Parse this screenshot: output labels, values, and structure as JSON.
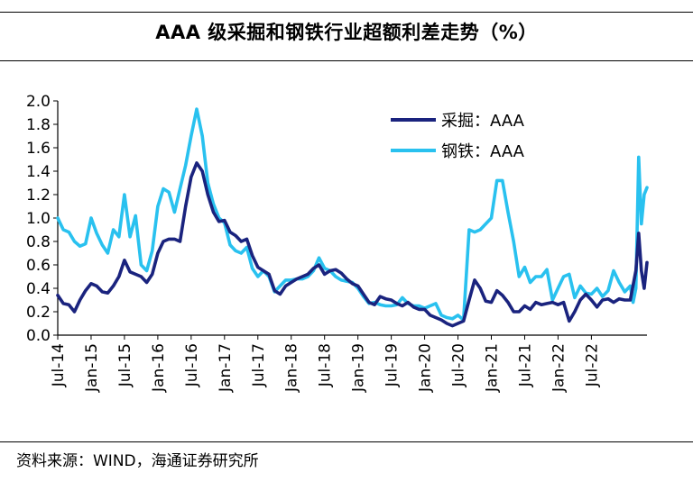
{
  "title": "AAA 级采掘和钢铁行业超额利差走势（%）",
  "source": "资料来源：WIND，海通证券研究所",
  "chart_data": {
    "type": "line",
    "title": "AAA 级采掘和钢铁行业超额利差走势（%）",
    "xlabel": "",
    "ylabel": "",
    "ylim": [
      0.0,
      2.0
    ],
    "yticks": [
      "0.0",
      "0.2",
      "0.4",
      "0.6",
      "0.8",
      "1.0",
      "1.2",
      "1.4",
      "1.6",
      "1.8",
      "2.0"
    ],
    "xticks": [
      "Jul-14",
      "Jan-15",
      "Jul-15",
      "Jan-16",
      "Jul-16",
      "Jan-17",
      "Jul-17",
      "Jan-18",
      "Jul-18",
      "Jan-19",
      "Jul-19",
      "Jan-20",
      "Jul-20",
      "Jan-21",
      "Jul-21",
      "Jan-22",
      "Jul-22"
    ],
    "xlim": [
      0,
      106
    ],
    "legend_position": "top-right",
    "series": [
      {
        "name": "采掘：AAA",
        "color": "#1a237e",
        "x": [
          0,
          1,
          2,
          3,
          4,
          5,
          6,
          7,
          8,
          9,
          10,
          11,
          12,
          13,
          14,
          15,
          16,
          17,
          18,
          19,
          20,
          21,
          22,
          23,
          24,
          25,
          26,
          27,
          28,
          29,
          30,
          31,
          32,
          33,
          34,
          35,
          36,
          37,
          38,
          39,
          40,
          41,
          42,
          43,
          44,
          45,
          46,
          47,
          48,
          49,
          50,
          51,
          52,
          53,
          54,
          55,
          56,
          57,
          58,
          59,
          60,
          61,
          62,
          63,
          64,
          65,
          66,
          67,
          68,
          69,
          70,
          71,
          72,
          73,
          74,
          75,
          76,
          77,
          78,
          79,
          80,
          81,
          82,
          83,
          84,
          85,
          86,
          87,
          88,
          89,
          90,
          91,
          92,
          93,
          94,
          95,
          96,
          97,
          98,
          99,
          100,
          101,
          102,
          103,
          104,
          104.5,
          105,
          105.5,
          106
        ],
        "values": [
          0.34,
          0.27,
          0.26,
          0.2,
          0.3,
          0.38,
          0.44,
          0.42,
          0.37,
          0.36,
          0.42,
          0.5,
          0.64,
          0.54,
          0.52,
          0.5,
          0.45,
          0.52,
          0.7,
          0.8,
          0.82,
          0.82,
          0.8,
          1.1,
          1.35,
          1.47,
          1.4,
          1.2,
          1.05,
          0.97,
          0.98,
          0.88,
          0.85,
          0.8,
          0.82,
          0.68,
          0.58,
          0.55,
          0.52,
          0.38,
          0.35,
          0.42,
          0.45,
          0.48,
          0.5,
          0.52,
          0.57,
          0.6,
          0.52,
          0.55,
          0.56,
          0.53,
          0.48,
          0.44,
          0.42,
          0.35,
          0.28,
          0.26,
          0.33,
          0.31,
          0.3,
          0.27,
          0.25,
          0.28,
          0.24,
          0.22,
          0.22,
          0.17,
          0.15,
          0.13,
          0.1,
          0.08,
          0.1,
          0.12,
          0.3,
          0.47,
          0.4,
          0.29,
          0.28,
          0.38,
          0.34,
          0.28,
          0.2,
          0.2,
          0.25,
          0.22,
          0.28,
          0.26,
          0.27,
          0.28,
          0.26,
          0.28,
          0.12,
          0.2,
          0.3,
          0.35,
          0.3,
          0.24,
          0.3,
          0.31,
          0.28,
          0.31,
          0.3,
          0.3,
          0.55,
          0.87,
          0.55,
          0.4,
          0.62
        ]
      },
      {
        "name": "钢铁：AAA",
        "color": "#29c1ef",
        "x": [
          0,
          1,
          2,
          3,
          4,
          5,
          6,
          7,
          8,
          9,
          10,
          11,
          12,
          13,
          14,
          15,
          16,
          17,
          18,
          19,
          20,
          21,
          22,
          23,
          24,
          25,
          26,
          27,
          28,
          29,
          30,
          31,
          32,
          33,
          34,
          35,
          36,
          37,
          38,
          39,
          40,
          41,
          42,
          43,
          44,
          45,
          46,
          47,
          48,
          49,
          50,
          51,
          52,
          53,
          54,
          55,
          56,
          57,
          58,
          59,
          60,
          61,
          62,
          63,
          64,
          65,
          66,
          67,
          68,
          69,
          70,
          71,
          72,
          73,
          74,
          75,
          76,
          77,
          78,
          79,
          80,
          81,
          82,
          83,
          84,
          85,
          86,
          87,
          88,
          89,
          90,
          91,
          92,
          93,
          94,
          95,
          96,
          97,
          98,
          99,
          100,
          101,
          102,
          103,
          103.5,
          104,
          104.5,
          105,
          105.5,
          106
        ],
        "values": [
          1.0,
          0.9,
          0.88,
          0.8,
          0.76,
          0.78,
          1.0,
          0.87,
          0.77,
          0.7,
          0.9,
          0.84,
          1.2,
          0.84,
          1.02,
          0.6,
          0.55,
          0.72,
          1.1,
          1.25,
          1.22,
          1.05,
          1.25,
          1.45,
          1.7,
          1.93,
          1.7,
          1.3,
          1.12,
          1.0,
          0.96,
          0.77,
          0.72,
          0.7,
          0.75,
          0.57,
          0.5,
          0.55,
          0.5,
          0.37,
          0.42,
          0.47,
          0.47,
          0.48,
          0.48,
          0.5,
          0.55,
          0.66,
          0.57,
          0.55,
          0.5,
          0.47,
          0.46,
          0.45,
          0.4,
          0.33,
          0.27,
          0.28,
          0.26,
          0.25,
          0.25,
          0.26,
          0.32,
          0.27,
          0.25,
          0.25,
          0.23,
          0.25,
          0.27,
          0.17,
          0.15,
          0.14,
          0.17,
          0.13,
          0.9,
          0.88,
          0.9,
          0.95,
          1.0,
          1.32,
          1.32,
          1.05,
          0.8,
          0.5,
          0.58,
          0.45,
          0.5,
          0.5,
          0.56,
          0.3,
          0.4,
          0.5,
          0.52,
          0.32,
          0.42,
          0.36,
          0.35,
          0.4,
          0.33,
          0.38,
          0.55,
          0.45,
          0.37,
          0.42,
          0.28,
          0.4,
          1.52,
          0.95,
          1.2,
          1.26
        ]
      }
    ]
  }
}
